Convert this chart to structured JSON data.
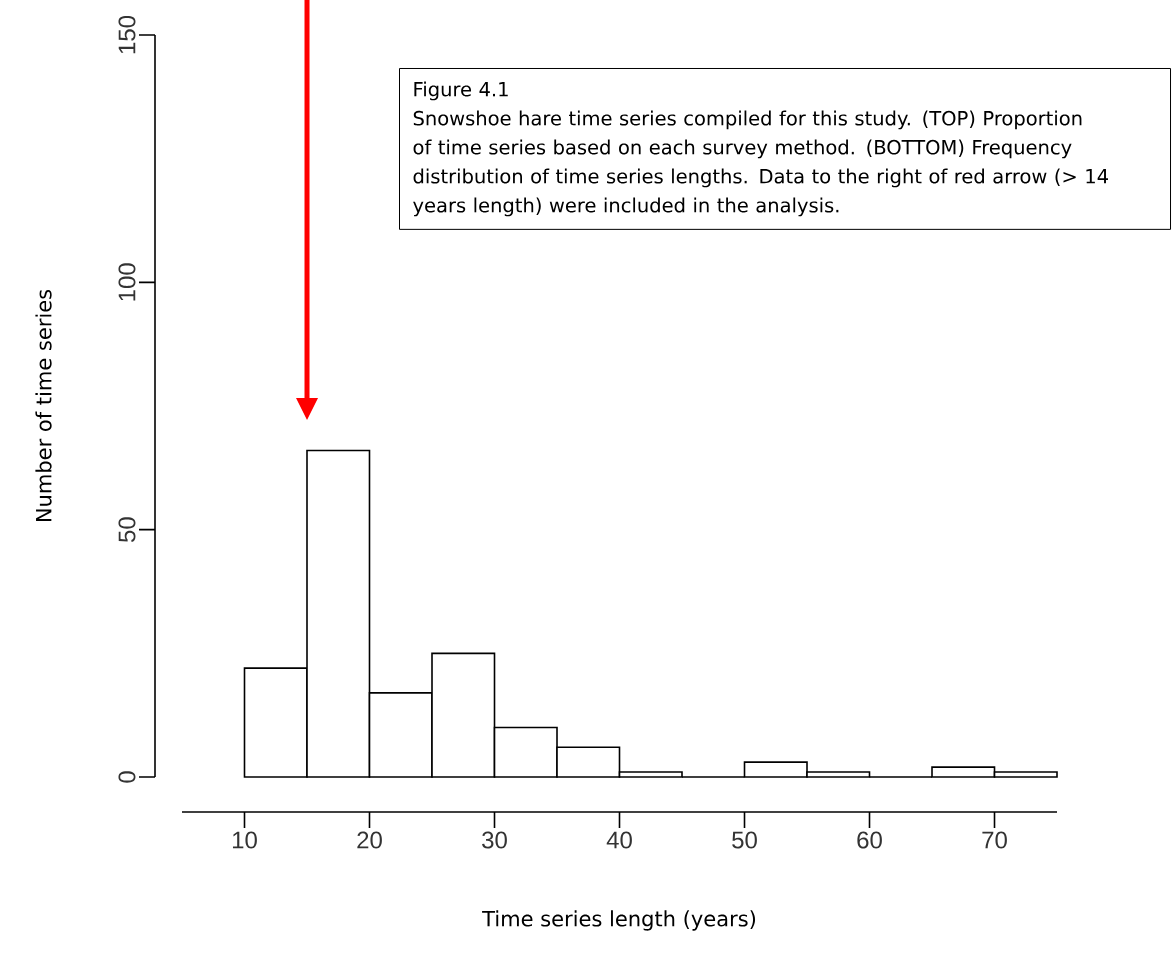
{
  "chart_data": {
    "type": "histogram",
    "xlabel": "Time series length (years)",
    "ylabel": "Number of time series",
    "bins": [
      5,
      10,
      15,
      20,
      25,
      30,
      35,
      40,
      45,
      50,
      55,
      60,
      65,
      70,
      75
    ],
    "values": [
      null,
      22,
      66,
      17,
      25,
      10,
      6,
      1,
      0,
      3,
      1,
      0,
      2,
      1
    ],
    "color": "#ffffff",
    "xlim": [
      5,
      75
    ],
    "ylim": [
      0,
      150
    ],
    "xticks": [
      10,
      20,
      30,
      40,
      50,
      60,
      70
    ],
    "yticks": [
      0,
      50,
      100,
      150
    ],
    "grid": false,
    "annotations": [
      "Figure 4.1",
      "Snowshoe hare time series compiled for this study. (TOP) Proportion of time series based on each survey method. (BOTTOM) Frequency distribution of time series lengths. Data to the right of red arrow (> 14 years length) were included in the analysis."
    ]
  }
}
